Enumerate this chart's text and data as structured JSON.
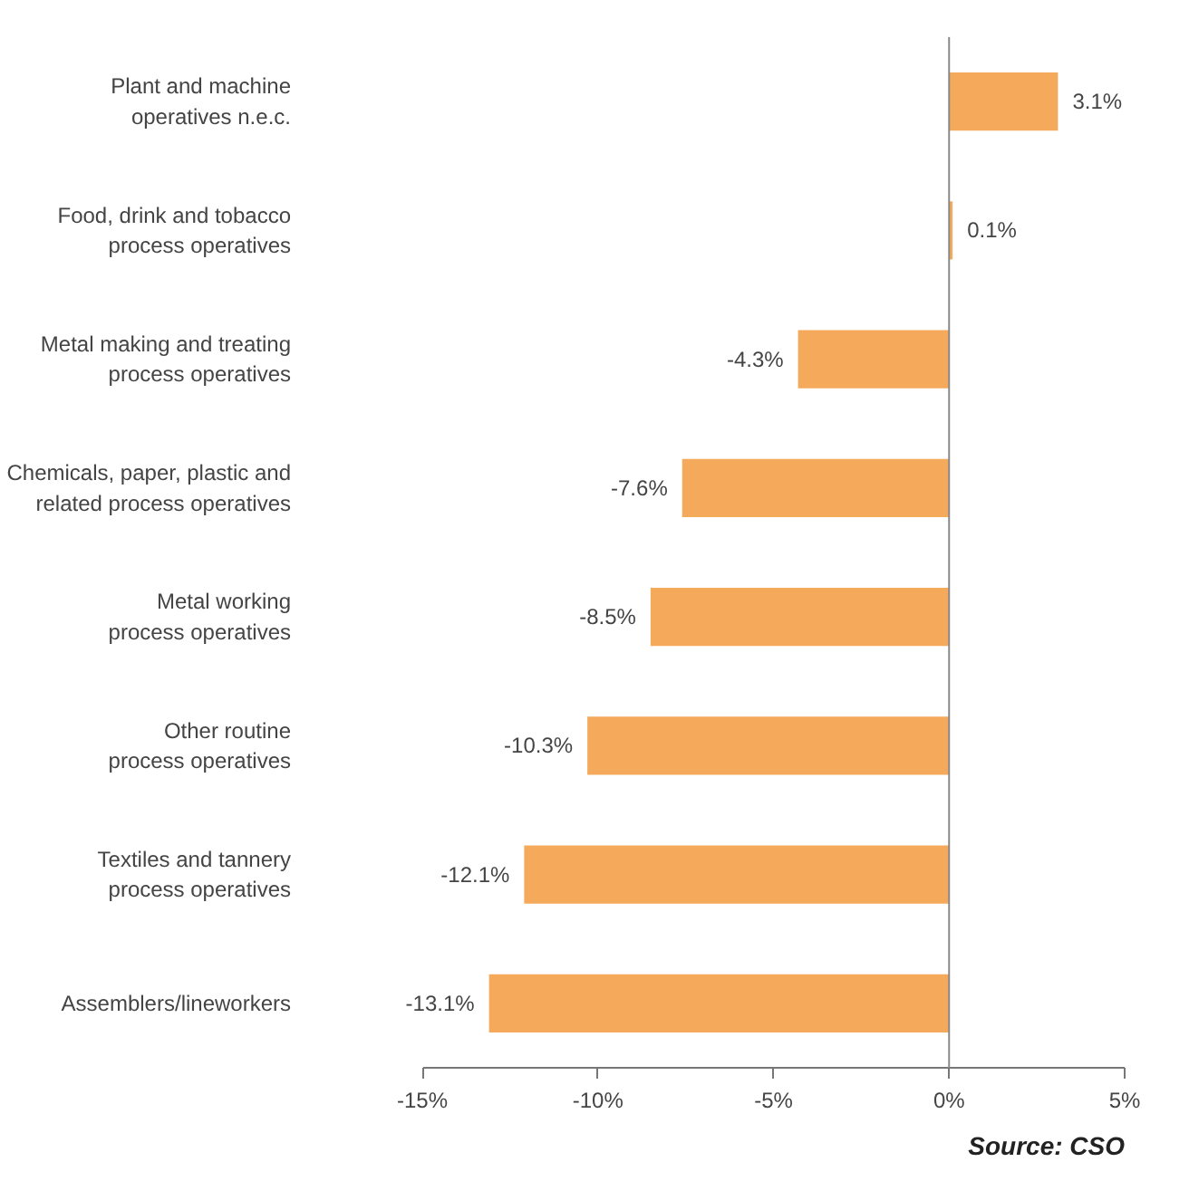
{
  "chart_data": {
    "type": "bar",
    "orientation": "horizontal",
    "categories": [
      "Plant and machine\noperatives n.e.c.",
      "Food, drink and tobacco\nprocess operatives",
      "Metal making and treating\nprocess operatives",
      "Chemicals, paper, plastic and\nrelated process operatives",
      "Metal working\nprocess operatives",
      "Other routine\nprocess operatives",
      "Textiles and tannery\nprocess operatives",
      "Assemblers/lineworkers"
    ],
    "series": [
      {
        "color": "#f5a95a",
        "values": [
          3.1,
          0.1,
          -4.3,
          -7.6,
          -8.5,
          -10.3,
          -12.1,
          -13.1
        ],
        "value_labels": [
          "3.1%",
          "0.1%",
          "-4.3%",
          "-7.6%",
          "-8.5%",
          "-10.3%",
          "-12.1%",
          "-13.1%"
        ]
      }
    ],
    "xlim": [
      -15,
      5
    ],
    "xticks": [
      {
        "value": -15,
        "label": "-15%"
      },
      {
        "value": -10,
        "label": "-10%"
      },
      {
        "value": -5,
        "label": "-5%"
      },
      {
        "value": 0,
        "label": "0%"
      },
      {
        "value": 5,
        "label": "5%"
      }
    ],
    "ref_lines": [
      {
        "axis": "x",
        "value": 0,
        "color": "#888888"
      }
    ],
    "grid": false,
    "annotations": [
      "Source: CSO"
    ]
  }
}
